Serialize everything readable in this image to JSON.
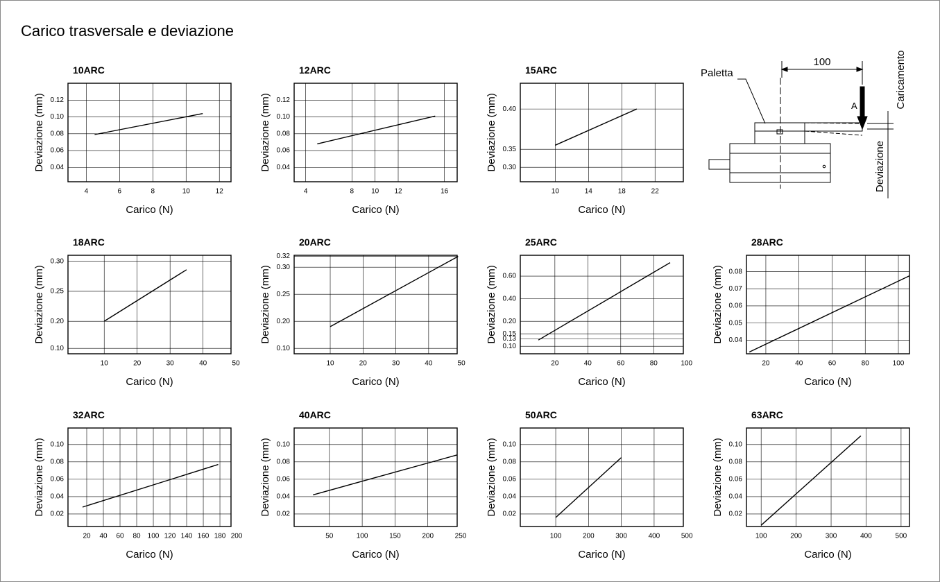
{
  "title": "Carico trasversale e deviazione",
  "chart_data": [
    {
      "type": "line",
      "title": "10ARC",
      "x_label": "Carico (N)",
      "y_label": "Deviazione (mm)",
      "color": "#000000",
      "grid": true,
      "x": [
        4.5,
        11
      ],
      "values": [
        0.079,
        0.104
      ],
      "xlim": [
        2.9,
        12.7
      ],
      "xticks": [
        4,
        6,
        8,
        10,
        12
      ],
      "ylim": [
        0.023,
        0.14
      ],
      "yticks": [
        0.04,
        0.06,
        0.08,
        {
          "value": 0.1,
          "label": "0.10"
        },
        0.12
      ]
    },
    {
      "type": "line",
      "title": "12ARC",
      "x_label": "Carico (N)",
      "y_label": "Deviazione (mm)",
      "color": "#000000",
      "grid": true,
      "x": [
        5,
        15.2
      ],
      "values": [
        0.068,
        0.101
      ],
      "xlim": [
        3,
        17.1
      ],
      "xticks": [
        4,
        8,
        10,
        12,
        16
      ],
      "ylim": [
        0.023,
        0.14
      ],
      "yticks": [
        0.04,
        0.06,
        0.08,
        {
          "value": 0.1,
          "label": "0.10"
        },
        0.12
      ]
    },
    {
      "type": "line",
      "title": "15ARC",
      "x_label": "Carico (N)",
      "y_label": "Deviazione (mm)",
      "color": "#000000",
      "grid": true,
      "x": [
        10,
        19.8
      ],
      "values": [
        0.355,
        0.4
      ],
      "xlim": [
        5.8,
        25.4
      ],
      "xticks": [
        10,
        14,
        18,
        22
      ],
      "ylim": [
        0.26,
        0.432
      ],
      "y_axis_break": 0.35,
      "yticks": [
        {
          "value": 0.3,
          "label": "0.30"
        },
        0.35,
        {
          "value": 0.4,
          "label": "0.40"
        }
      ]
    },
    {
      "type": "line",
      "title": "18ARC",
      "x_label": "Carico (N)",
      "y_label": "Deviazione (mm)",
      "color": "#000000",
      "grid": true,
      "x": [
        10,
        35
      ],
      "values": [
        0.2,
        0.286
      ],
      "xlim": [
        -1,
        48.5
      ],
      "xticks": [
        10,
        20,
        30,
        40,
        50
      ],
      "ylim": [
        0.08,
        0.31
      ],
      "y_axis_break": 0.2,
      "yticks": [
        {
          "value": 0.1,
          "label": "0.10"
        },
        {
          "value": 0.2,
          "label": "0.20"
        },
        0.25,
        {
          "value": 0.3,
          "label": "0.30"
        }
      ]
    },
    {
      "type": "line",
      "title": "20ARC",
      "x_label": "Carico (N)",
      "y_label": "Deviazione (mm)",
      "color": "#000000",
      "grid": true,
      "x": [
        10,
        49
      ],
      "values": [
        0.18,
        0.32
      ],
      "xlim": [
        -1,
        48.7
      ],
      "xticks": [
        10,
        20,
        30,
        40,
        50
      ],
      "ylim": [
        0.08,
        0.322
      ],
      "y_axis_break": 0.2,
      "yticks": [
        {
          "value": 0.1,
          "label": "0.10"
        },
        {
          "value": 0.2,
          "label": "0.20"
        },
        0.25,
        {
          "value": 0.3,
          "label": "0.30"
        },
        0.32
      ]
    },
    {
      "type": "line",
      "title": "25ARC",
      "x_label": "Carico (N)",
      "y_label": "Deviazione (mm)",
      "color": "#000000",
      "grid": true,
      "x": [
        10,
        90
      ],
      "values": [
        0.125,
        0.72
      ],
      "xlim": [
        -1,
        98
      ],
      "xticks": [
        20,
        40,
        60,
        80,
        100
      ],
      "ylim": [
        0.07,
        0.785
      ],
      "y_axis_break": 0.2,
      "yticks": [
        {
          "value": 0.1,
          "label": "0.10"
        },
        0.13,
        0.15,
        {
          "value": 0.2,
          "label": "0.20"
        },
        {
          "value": 0.4,
          "label": "0.40"
        },
        {
          "value": 0.6,
          "label": "0.60"
        }
      ]
    },
    {
      "type": "line",
      "title": "28ARC",
      "x_label": "Carico (N)",
      "y_label": "Deviazione (mm)",
      "color": "#000000",
      "grid": true,
      "x": [
        10,
        106.7
      ],
      "values": [
        0.033,
        0.0776
      ],
      "xlim": [
        8.3,
        106.7
      ],
      "xticks": [
        20,
        40,
        60,
        80,
        100
      ],
      "ylim": [
        0.032,
        0.0896
      ],
      "yticks": [
        0.04,
        0.05,
        0.06,
        0.07,
        0.08
      ]
    },
    {
      "type": "line",
      "title": "32ARC",
      "x_label": "Carico (N)",
      "y_label": "Deviazione (mm)",
      "color": "#000000",
      "grid": true,
      "x": [
        15,
        178
      ],
      "values": [
        0.028,
        0.077
      ],
      "xlim": [
        -2.5,
        193.3
      ],
      "xticks": [
        20,
        40,
        60,
        80,
        100,
        120,
        140,
        160,
        180,
        200
      ],
      "ylim": [
        0.0056,
        0.119
      ],
      "yticks": [
        0.02,
        0.04,
        0.06,
        0.08,
        {
          "value": 0.1,
          "label": "0.10"
        }
      ]
    },
    {
      "type": "line",
      "title": "40ARC",
      "x_label": "Carico (N)",
      "y_label": "Deviazione (mm)",
      "color": "#000000",
      "grid": true,
      "x": [
        25,
        244.7
      ],
      "values": [
        0.042,
        0.088
      ],
      "xlim": [
        -3.7,
        244.7
      ],
      "xticks": [
        50,
        100,
        150,
        200,
        250
      ],
      "ylim": [
        0.0056,
        0.119
      ],
      "yticks": [
        0.02,
        0.04,
        0.06,
        0.08,
        {
          "value": 0.1,
          "label": "0.10"
        }
      ]
    },
    {
      "type": "line",
      "title": "50ARC",
      "x_label": "Carico (N)",
      "y_label": "Deviazione (mm)",
      "color": "#000000",
      "grid": true,
      "x": [
        100,
        300
      ],
      "values": [
        0.016,
        0.085
      ],
      "xlim": [
        -8,
        489
      ],
      "xticks": [
        100,
        200,
        300,
        400,
        500
      ],
      "ylim": [
        0.0056,
        0.119
      ],
      "yticks": [
        0.02,
        0.04,
        0.06,
        0.08,
        {
          "value": 0.1,
          "label": "0.10"
        }
      ]
    },
    {
      "type": "line",
      "title": "63ARC",
      "x_label": "Carico (N)",
      "y_label": "Deviazione (mm)",
      "color": "#000000",
      "grid": true,
      "x": [
        100,
        385
      ],
      "values": [
        0.007,
        0.11
      ],
      "xlim": [
        58,
        524
      ],
      "xticks": [
        100,
        200,
        300,
        400,
        500
      ],
      "ylim": [
        0.0056,
        0.119
      ],
      "yticks": [
        0.02,
        0.04,
        0.06,
        0.08,
        {
          "value": 0.1,
          "label": "0.10"
        }
      ]
    }
  ],
  "diagram": {
    "pallet": "Paletta",
    "distance": 100,
    "load_point": "A",
    "load": "Caricamento",
    "deflection": "Deviazione"
  }
}
